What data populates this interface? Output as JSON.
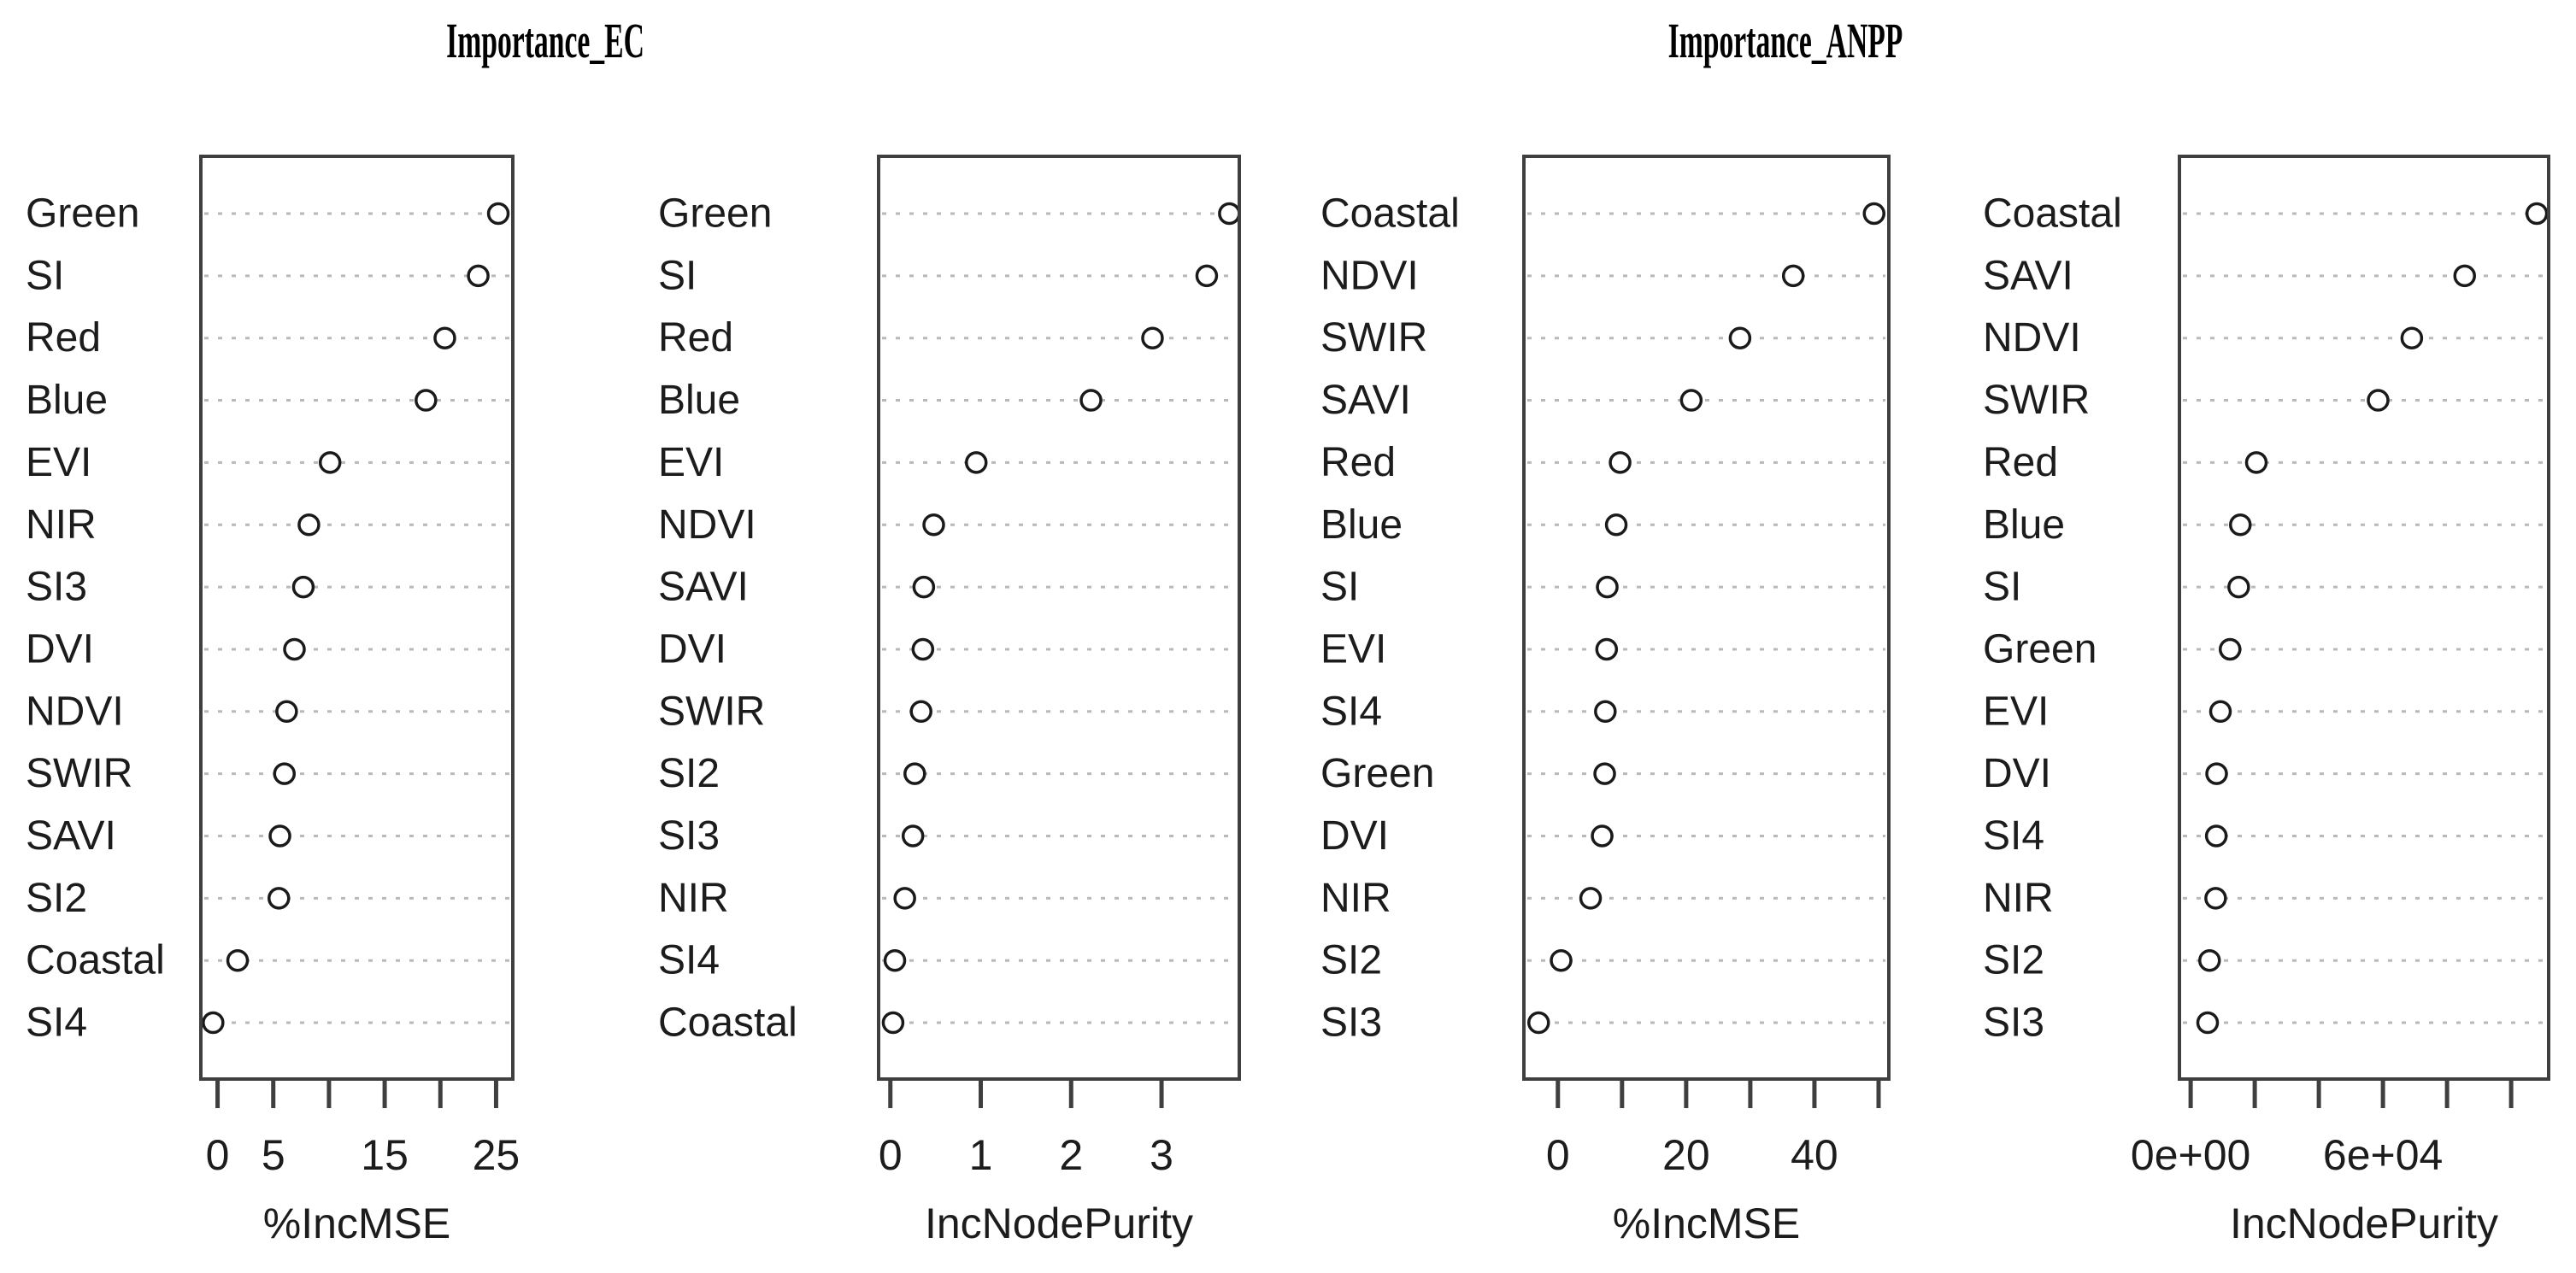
{
  "titles": [
    {
      "text": "Importance_EC"
    },
    {
      "text": "Importance_ANPP"
    }
  ],
  "chart_data": [
    {
      "type": "scatter",
      "variant": "dotchart",
      "panel_id": "ec-incmse",
      "figure": "Importance_EC",
      "xlabel": "%IncMSE",
      "xlim": [
        -1.5,
        26.5
      ],
      "grid": "dotted-horizontal",
      "legend": "none",
      "categories": [
        "Green",
        "SI",
        "Red",
        "Blue",
        "EVI",
        "NIR",
        "SI3",
        "DVI",
        "NDVI",
        "SWIR",
        "SAVI",
        "SI2",
        "Coastal",
        "SI4"
      ],
      "values": [
        25.2,
        23.4,
        20.4,
        18.7,
        10.1,
        8.2,
        7.7,
        6.9,
        6.2,
        6.0,
        5.6,
        5.5,
        1.8,
        -0.4
      ],
      "ticks": [
        {
          "value": 0,
          "label": "0"
        },
        {
          "value": 5,
          "label": "5"
        },
        {
          "value": 10,
          "label": ""
        },
        {
          "value": 15,
          "label": "15"
        },
        {
          "value": 20,
          "label": ""
        },
        {
          "value": 25,
          "label": "25"
        }
      ]
    },
    {
      "type": "scatter",
      "variant": "dotchart",
      "panel_id": "ec-incnodepurity",
      "figure": "Importance_EC",
      "xlabel": "IncNodePurity",
      "xlim": [
        -0.13,
        3.86
      ],
      "grid": "dotted-horizontal",
      "legend": "none",
      "categories": [
        "Green",
        "SI",
        "Red",
        "Blue",
        "EVI",
        "NDVI",
        "SAVI",
        "DVI",
        "SWIR",
        "SI2",
        "SI3",
        "NIR",
        "SI4",
        "Coastal"
      ],
      "values": [
        3.75,
        3.5,
        2.9,
        2.22,
        0.95,
        0.48,
        0.37,
        0.36,
        0.34,
        0.27,
        0.25,
        0.16,
        0.05,
        0.03
      ],
      "ticks": [
        {
          "value": 0,
          "label": "0"
        },
        {
          "value": 1,
          "label": "1"
        },
        {
          "value": 2,
          "label": "2"
        },
        {
          "value": 3,
          "label": "3"
        }
      ]
    },
    {
      "type": "scatter",
      "variant": "dotchart",
      "panel_id": "anpp-incmse",
      "figure": "Importance_ANPP",
      "xlabel": "%IncMSE",
      "xlim": [
        -5.3,
        51.6
      ],
      "grid": "dotted-horizontal",
      "legend": "none",
      "categories": [
        "Coastal",
        "NDVI",
        "SWIR",
        "SAVI",
        "Red",
        "Blue",
        "SI",
        "EVI",
        "SI4",
        "Green",
        "DVI",
        "NIR",
        "SI2",
        "SI3"
      ],
      "values": [
        49.3,
        36.7,
        28.4,
        20.8,
        9.7,
        9.1,
        7.7,
        7.6,
        7.4,
        7.3,
        6.9,
        5.1,
        0.5,
        -3.0
      ],
      "ticks": [
        {
          "value": 0,
          "label": "0"
        },
        {
          "value": 10,
          "label": ""
        },
        {
          "value": 20,
          "label": "20"
        },
        {
          "value": 30,
          "label": ""
        },
        {
          "value": 40,
          "label": "40"
        },
        {
          "value": 50,
          "label": ""
        }
      ]
    },
    {
      "type": "scatter",
      "variant": "dotchart",
      "panel_id": "anpp-incnodepurity",
      "figure": "Importance_ANPP",
      "xlabel": "IncNodePurity",
      "xlim": [
        -3500,
        111700
      ],
      "grid": "dotted-horizontal",
      "legend": "none",
      "categories": [
        "Coastal",
        "SAVI",
        "NDVI",
        "SWIR",
        "Red",
        "Blue",
        "SI",
        "Green",
        "EVI",
        "DVI",
        "SI4",
        "NIR",
        "SI2",
        "SI3"
      ],
      "values": [
        108000,
        85500,
        69000,
        58500,
        20500,
        15500,
        15000,
        12300,
        9300,
        8100,
        8000,
        7800,
        5900,
        5300
      ],
      "ticks": [
        {
          "value": 0,
          "label": "0e+00"
        },
        {
          "value": 20000,
          "label": ""
        },
        {
          "value": 40000,
          "label": ""
        },
        {
          "value": 60000,
          "label": "6e+04"
        },
        {
          "value": 80000,
          "label": ""
        },
        {
          "value": 100000,
          "label": ""
        }
      ]
    }
  ]
}
